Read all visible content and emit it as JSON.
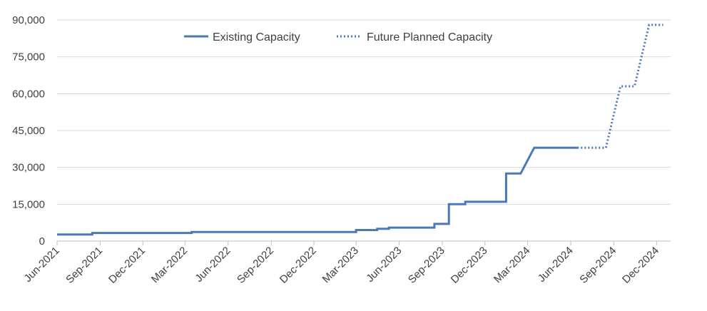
{
  "chart_data": {
    "type": "line",
    "title": "",
    "xlabel": "",
    "ylabel": "",
    "ylim": [
      0,
      90000
    ],
    "yticks": [
      0,
      15000,
      30000,
      45000,
      60000,
      75000,
      90000
    ],
    "ytick_labels": [
      "0",
      "15,000",
      "30,000",
      "45,000",
      "60,000",
      "75,000",
      "90,000"
    ],
    "xticks": [
      "2021-06",
      "2021-09",
      "2021-12",
      "2022-03",
      "2022-06",
      "2022-09",
      "2022-12",
      "2023-03",
      "2023-06",
      "2023-09",
      "2023-12",
      "2024-03",
      "2024-06",
      "2024-09",
      "2024-12"
    ],
    "xtick_labels": [
      "Jun-2021",
      "Sep-2021",
      "Dec-2021",
      "Mar-2022",
      "Jun-2022",
      "Sep-2022",
      "Dec-2022",
      "Mar-2023",
      "Jun-2023",
      "Sep-2023",
      "Dec-2023",
      "Mar-2024",
      "Jun-2024",
      "Sep-2024",
      "Dec-2024"
    ],
    "grid": true,
    "legend_position": "top-center",
    "series": [
      {
        "name": "Existing Capacity",
        "style": "solid",
        "color": "#4a78b8",
        "points": [
          [
            "2021-06-01",
            2700
          ],
          [
            "2021-08-15",
            2700
          ],
          [
            "2021-08-15",
            3300
          ],
          [
            "2022-03-15",
            3300
          ],
          [
            "2022-03-15",
            3700
          ],
          [
            "2023-03-01",
            3700
          ],
          [
            "2023-03-01",
            4500
          ],
          [
            "2023-04-15",
            4500
          ],
          [
            "2023-04-15",
            5000
          ],
          [
            "2023-05-10",
            5000
          ],
          [
            "2023-05-10",
            5500
          ],
          [
            "2023-08-15",
            5500
          ],
          [
            "2023-08-15",
            7000
          ],
          [
            "2023-09-15",
            7000
          ],
          [
            "2023-09-15",
            15000
          ],
          [
            "2023-10-20",
            15000
          ],
          [
            "2023-10-20",
            16000
          ],
          [
            "2024-01-15",
            16000
          ],
          [
            "2024-01-15",
            27500
          ],
          [
            "2024-02-15",
            27500
          ],
          [
            "2024-03-15",
            38000
          ],
          [
            "2024-06-15",
            38000
          ]
        ]
      },
      {
        "name": "Future Planned Capacity",
        "style": "dotted",
        "color": "#4a78b8",
        "points": [
          [
            "2024-06-15",
            38000
          ],
          [
            "2024-08-15",
            38000
          ],
          [
            "2024-09-15",
            63000
          ],
          [
            "2024-10-15",
            63000
          ],
          [
            "2024-11-15",
            88000
          ],
          [
            "2024-12-15",
            88000
          ]
        ]
      }
    ]
  }
}
